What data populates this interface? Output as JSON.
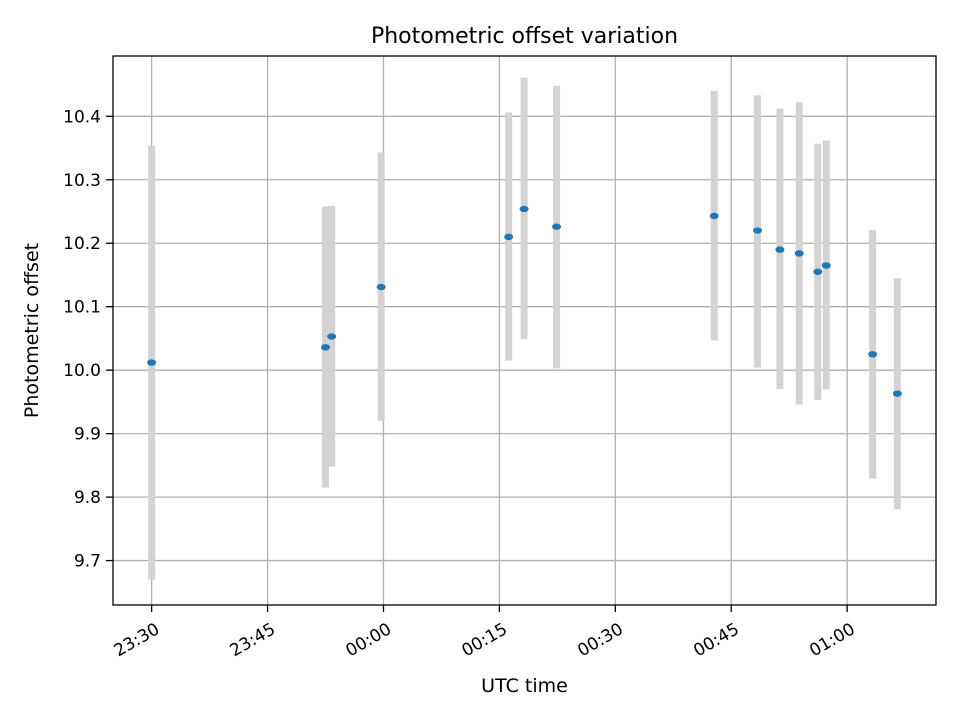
{
  "chart_data": {
    "type": "scatter",
    "title": "Photometric offset variation",
    "xlabel": "UTC time",
    "ylabel": "Photometric offset",
    "x_ticks": [
      "23:30",
      "23:45",
      "00:00",
      "00:15",
      "00:30",
      "00:45",
      "01:00"
    ],
    "x_tick_minutes": [
      0,
      15,
      30,
      45,
      60,
      75,
      90
    ],
    "xlim_minutes": [
      -5,
      101.5
    ],
    "y_ticks": [
      "9.7",
      "9.8",
      "9.9",
      "10.0",
      "10.1",
      "10.2",
      "10.3",
      "10.4"
    ],
    "y_tick_values": [
      9.7,
      9.8,
      9.9,
      10.0,
      10.1,
      10.2,
      10.3,
      10.4
    ],
    "ylim": [
      9.63,
      10.495
    ],
    "grid": true,
    "marker_color": "#1f77b4",
    "errorbar_color": "#d3d3d3",
    "points": [
      {
        "t_min": 0.0,
        "y": 10.012,
        "lo": 9.67,
        "hi": 10.354
      },
      {
        "t_min": 22.5,
        "y": 10.036,
        "lo": 9.815,
        "hi": 10.258
      },
      {
        "t_min": 23.3,
        "y": 10.053,
        "lo": 9.848,
        "hi": 10.259
      },
      {
        "t_min": 29.7,
        "y": 10.131,
        "lo": 9.92,
        "hi": 10.343
      },
      {
        "t_min": 46.2,
        "y": 10.21,
        "lo": 10.015,
        "hi": 10.406
      },
      {
        "t_min": 48.2,
        "y": 10.254,
        "lo": 10.049,
        "hi": 10.461
      },
      {
        "t_min": 52.4,
        "y": 10.226,
        "lo": 10.003,
        "hi": 10.448
      },
      {
        "t_min": 72.8,
        "y": 10.243,
        "lo": 10.047,
        "hi": 10.44
      },
      {
        "t_min": 78.4,
        "y": 10.22,
        "lo": 10.004,
        "hi": 10.433
      },
      {
        "t_min": 81.3,
        "y": 10.19,
        "lo": 9.97,
        "hi": 10.412
      },
      {
        "t_min": 83.8,
        "y": 10.184,
        "lo": 9.946,
        "hi": 10.422
      },
      {
        "t_min": 86.2,
        "y": 10.155,
        "lo": 9.953,
        "hi": 10.357
      },
      {
        "t_min": 87.3,
        "y": 10.165,
        "lo": 9.97,
        "hi": 10.362
      },
      {
        "t_min": 93.3,
        "y": 10.025,
        "lo": 9.829,
        "hi": 10.221
      },
      {
        "t_min": 96.5,
        "y": 9.963,
        "lo": 9.781,
        "hi": 10.145
      }
    ]
  }
}
